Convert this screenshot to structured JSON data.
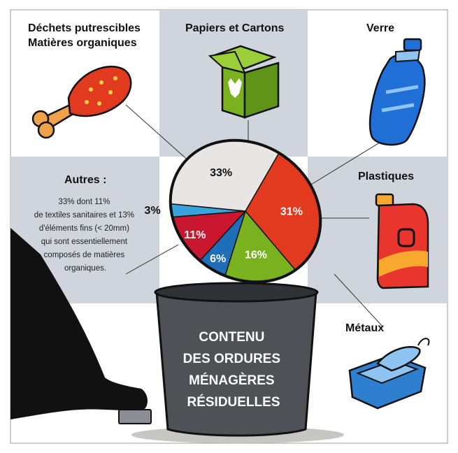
{
  "chart_data": {
    "type": "pie",
    "title": "CONTENU DES ORDURES MÉNAGÈRES RÉSIDUELLES",
    "title_lines": [
      "CONTENU",
      "DES ORDURES",
      "MÉNAGÈRES",
      "RÉSIDUELLES"
    ],
    "categories": [
      {
        "header": [
          "Déchets putrescibles",
          "Matières organiques"
        ],
        "label": "31%",
        "value": 31,
        "color": "#e23a1f"
      },
      {
        "header": [
          "Papiers et Cartons"
        ],
        "label": "16%",
        "value": 16,
        "color": "#7ab21f"
      },
      {
        "header": [
          "Verre"
        ],
        "label": "6%",
        "value": 6,
        "color": "#1e6eb8"
      },
      {
        "header": [
          "Plastiques"
        ],
        "label": "11%",
        "value": 11,
        "color": "#c8172e"
      },
      {
        "header": [
          "Métaux"
        ],
        "label": "3%",
        "value": 3,
        "color": "#39a3dc"
      },
      {
        "header": [
          "Autres :"
        ],
        "label": "33%",
        "value": 33,
        "color": "#e8e6e4"
      }
    ],
    "autres_note": [
      "33% dont 11%",
      "de textiles sanitaires et 13%",
      "d'éléments fins (< 20mm)",
      "qui sont essentiellement",
      "composés de matières",
      "organiques."
    ]
  },
  "icons": [
    "chicken-leg-icon",
    "cardboard-box-icon",
    "water-bottle-icon",
    "plastic-jerrycan-icon",
    "tin-can-icon",
    "foot-icon",
    "trash-bin-icon"
  ],
  "colors": {
    "grey_panel": "#d0d4dc",
    "bin": "#4e5257",
    "outline": "#111111"
  }
}
